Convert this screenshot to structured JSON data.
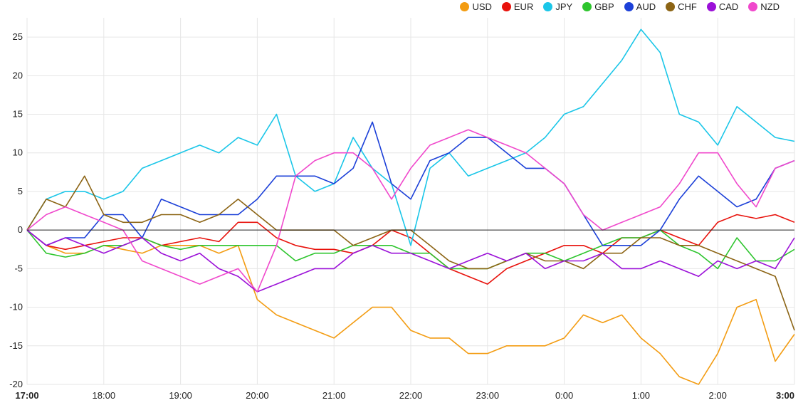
{
  "chart_data": {
    "type": "line",
    "title": "",
    "xlabel": "",
    "ylabel": "",
    "ylim": [
      -20,
      27.5
    ],
    "xlim": [
      "17:00",
      "3:00"
    ],
    "yticks": [
      -20,
      -15,
      -10,
      -5,
      0,
      5,
      10,
      15,
      20,
      25
    ],
    "xticks": [
      {
        "label": "17:00",
        "value": 0,
        "bold": true
      },
      {
        "label": "18:00",
        "value": 60,
        "bold": false
      },
      {
        "label": "19:00",
        "value": 120,
        "bold": false
      },
      {
        "label": "20:00",
        "value": 180,
        "bold": false
      },
      {
        "label": "21:00",
        "value": 240,
        "bold": false
      },
      {
        "label": "22:00",
        "value": 300,
        "bold": false
      },
      {
        "label": "23:00",
        "value": 360,
        "bold": false
      },
      {
        "label": "0:00",
        "value": 420,
        "bold": false
      },
      {
        "label": "1:00",
        "value": 480,
        "bold": false
      },
      {
        "label": "2:00",
        "value": 540,
        "bold": false
      },
      {
        "label": "3:00",
        "value": 600,
        "bold": true
      }
    ],
    "grid": true,
    "legend_position": "top-right",
    "x": [
      0,
      15,
      30,
      45,
      60,
      75,
      90,
      105,
      120,
      135,
      150,
      165,
      180,
      195,
      210,
      225,
      240,
      255,
      270,
      285,
      300,
      315,
      330,
      345,
      360,
      375,
      390,
      405,
      420,
      435,
      450,
      465,
      480,
      495,
      510,
      525,
      540,
      555,
      570,
      585,
      600
    ],
    "series": [
      {
        "name": "USD",
        "color": "#f39c12",
        "values": [
          0,
          -2,
          -3,
          -3,
          -2,
          -2.5,
          -3,
          -2,
          -2,
          -2,
          -3,
          -2,
          -9,
          -11,
          -12,
          -13,
          -14,
          -12,
          -10,
          -10,
          -13,
          -14,
          -14,
          -16,
          -16,
          -15,
          -15,
          -15,
          -14,
          -11,
          -12,
          -11,
          -14,
          -16,
          -19,
          -20,
          -16,
          -10,
          -9,
          -17,
          -13.5
        ]
      },
      {
        "name": "EUR",
        "color": "#e8120c",
        "values": [
          0,
          -2,
          -2.5,
          -2,
          -1.5,
          -1,
          -1,
          -2,
          -1.5,
          -1,
          -1.5,
          1,
          1,
          -1,
          -2,
          -2.5,
          -2.5,
          -3,
          -2,
          0,
          -1,
          -3,
          -5,
          -6,
          -7,
          -5,
          -4,
          -3,
          -2,
          -2,
          -3,
          -1,
          -1,
          0,
          -1,
          -2,
          1,
          2,
          1.5,
          2,
          1
        ]
      },
      {
        "name": "JPY",
        "color": "#1ac6e8",
        "values": [
          0,
          4,
          5,
          5,
          4,
          5,
          8,
          9,
          10,
          11,
          10,
          12,
          11,
          15,
          7,
          5,
          6,
          12,
          8,
          6,
          -2,
          8,
          10,
          7,
          8,
          9,
          10,
          12,
          15,
          16,
          19,
          22,
          26,
          23,
          15,
          14,
          11,
          16,
          14,
          12,
          11.5
        ]
      },
      {
        "name": "GBP",
        "color": "#2ec52e",
        "values": [
          0,
          -3,
          -3.5,
          -3,
          -2,
          -2,
          -1,
          -2,
          -2.5,
          -2,
          -2,
          -2,
          -2,
          -2,
          -4,
          -3,
          -3,
          -2,
          -2,
          -2,
          -3,
          -3,
          -5,
          -5,
          -5,
          -4,
          -3,
          -3,
          -4,
          -3,
          -2,
          -1,
          -1,
          0,
          -2,
          -3,
          -5,
          -1,
          -4,
          -4,
          -2.5
        ]
      },
      {
        "name": "AUD",
        "color": "#1c40d8",
        "values": [
          0,
          -2,
          -1,
          -1,
          2,
          2,
          -1,
          4,
          3,
          2,
          2,
          2,
          4,
          7,
          7,
          7,
          6,
          8,
          14,
          6,
          4,
          9,
          10,
          12,
          12,
          10,
          8,
          8,
          6,
          2,
          -2,
          -2,
          -2,
          0,
          4,
          7,
          5,
          3,
          4,
          8,
          9
        ]
      },
      {
        "name": "CHF",
        "color": "#8c6414",
        "values": [
          0,
          4,
          3,
          7,
          2,
          1,
          1,
          2,
          2,
          1,
          2,
          4,
          2,
          0,
          0,
          0,
          0,
          -2,
          -1,
          0,
          0,
          -2,
          -4,
          -5,
          -5,
          -4,
          -3,
          -4,
          -4,
          -5,
          -3,
          -3,
          -1,
          -1,
          -2,
          -2,
          -3,
          -4,
          -5,
          -6,
          -13
        ]
      },
      {
        "name": "CAD",
        "color": "#9b10d8",
        "values": [
          0,
          -2,
          -1,
          -2,
          -3,
          -2,
          -1,
          -3,
          -4,
          -3,
          -5,
          -6,
          -8,
          -7,
          -6,
          -5,
          -5,
          -3,
          -2,
          -3,
          -3,
          -4,
          -5,
          -4,
          -3,
          -4,
          -3,
          -5,
          -4,
          -4,
          -3,
          -5,
          -5,
          -4,
          -5,
          -6,
          -4,
          -5,
          -4,
          -5,
          -1
        ]
      },
      {
        "name": "NZD",
        "color": "#f048cc",
        "values": [
          0,
          2,
          3,
          2,
          1,
          0,
          -4,
          -5,
          -6,
          -7,
          -6,
          -5,
          -8,
          -2,
          7,
          9,
          10,
          10,
          8,
          4,
          8,
          11,
          12,
          13,
          12,
          11,
          10,
          8,
          6,
          2,
          0,
          1,
          2,
          3,
          6,
          10,
          10,
          6,
          3,
          8,
          9
        ]
      }
    ]
  }
}
